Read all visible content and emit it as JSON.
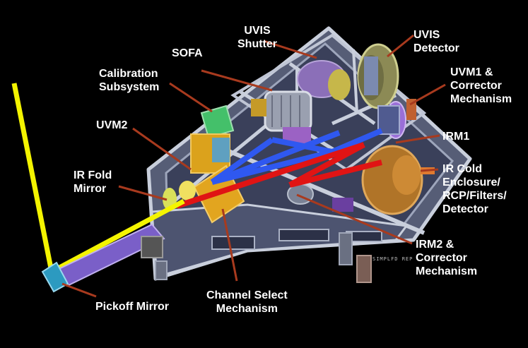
{
  "labels": {
    "uvis_shutter": "UVIS\nShutter",
    "uvis_detector": "UVIS\nDetector",
    "sofa": "SOFA",
    "calibration": "Calibration\nSubsystem",
    "uvm1": "UVM1 &\nCorrector\nMechanism",
    "uvm2": "UVM2",
    "irm1": "IRM1",
    "ir_cold": "IR Cold\nEnclosure/\nRCP/Filters/\nDetector",
    "ir_fold": "IR Fold\nMirror",
    "irm2": "IRM2 &\nCorrector\nMechanism",
    "channel_select": "Channel Select\nMechanism",
    "pickoff": "Pickoff Mirror",
    "watermark": "SIMPLFD REP"
  },
  "colors": {
    "background": "#000000",
    "label_text": "#ffffff",
    "leader_line": "#a83a1e",
    "uv_beam": "#2f58f0",
    "ir_beam": "#e01414",
    "input_beam": "#f4f400",
    "frame": "#c9cfdc",
    "frame_fill": "#565d76",
    "detector_orange": "#c9802a",
    "calibration_green": "#4caf6c",
    "pickoff_purple": "#7a5fc8"
  }
}
